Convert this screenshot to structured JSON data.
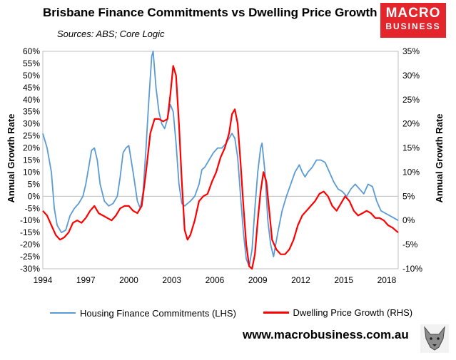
{
  "title": "Brisbane Finance Commitments vs Dwelling Price Growth",
  "subtitle": "Sources: ABS; Core Logic",
  "logo": {
    "line1": "MACRO",
    "line2": "BUSINESS",
    "color": "#e4262c"
  },
  "website": "www.macrobusiness.com.au",
  "chart_data": {
    "type": "line",
    "x_ticks": [
      "1994",
      "1997",
      "2000",
      "2003",
      "2006",
      "2009",
      "2012",
      "2015",
      "2018"
    ],
    "x_range": [
      1994.0,
      2018.8
    ],
    "y_left": {
      "label": "Annual Growth Rate",
      "range": [
        -30,
        60
      ],
      "ticks": [
        "60%",
        "55%",
        "50%",
        "45%",
        "40%",
        "35%",
        "30%",
        "25%",
        "20%",
        "15%",
        "10%",
        "5%",
        "0%",
        "-5%",
        "-10%",
        "-15%",
        "-20%",
        "-25%",
        "-30%"
      ]
    },
    "y_right": {
      "label": "Annual Growth Rate",
      "range": [
        -10,
        35
      ],
      "ticks": [
        "35%",
        "30%",
        "25%",
        "20%",
        "15%",
        "10%",
        "5%",
        "0%",
        "-5%",
        "-10%"
      ]
    },
    "zero_line": true,
    "legend_position": "bottom",
    "series": [
      {
        "name": "Housing Finance Commitments (LHS)",
        "axis": "left",
        "color": "#5b9bd5",
        "x": [
          1994.0,
          1994.3,
          1994.6,
          1994.8,
          1995.0,
          1995.3,
          1995.6,
          1995.9,
          1996.2,
          1996.5,
          1996.8,
          1997.0,
          1997.2,
          1997.4,
          1997.6,
          1997.8,
          1998.0,
          1998.3,
          1998.6,
          1998.9,
          1999.2,
          1999.4,
          1999.6,
          1999.8,
          2000.0,
          2000.3,
          2000.6,
          2000.8,
          2001.0,
          2001.2,
          2001.4,
          2001.6,
          2001.7,
          2001.9,
          2002.1,
          2002.3,
          2002.5,
          2002.7,
          2002.9,
          2003.1,
          2003.3,
          2003.5,
          2003.7,
          2003.9,
          2004.1,
          2004.3,
          2004.6,
          2004.9,
          2005.1,
          2005.3,
          2005.6,
          2005.9,
          2006.2,
          2006.5,
          2006.8,
          2007.0,
          2007.2,
          2007.4,
          2007.6,
          2007.8,
          2008.0,
          2008.2,
          2008.4,
          2008.6,
          2008.8,
          2009.0,
          2009.2,
          2009.3,
          2009.5,
          2009.7,
          2009.9,
          2010.1,
          2010.4,
          2010.7,
          2011.0,
          2011.3,
          2011.6,
          2011.9,
          2012.1,
          2012.3,
          2012.5,
          2012.8,
          2013.1,
          2013.4,
          2013.7,
          2014.0,
          2014.3,
          2014.6,
          2014.9,
          2015.2,
          2015.5,
          2015.8,
          2016.1,
          2016.4,
          2016.7,
          2017.0,
          2017.3,
          2017.6,
          2017.9,
          2018.2,
          2018.5,
          2018.8
        ],
        "y": [
          26,
          20,
          10,
          -5,
          -12,
          -15,
          -14,
          -8,
          -5,
          -3,
          0,
          5,
          12,
          19,
          20,
          15,
          5,
          -2,
          -4,
          -3,
          0,
          8,
          18,
          20,
          21,
          10,
          -2,
          -5,
          2,
          20,
          40,
          58,
          60,
          45,
          35,
          30,
          28,
          32,
          38,
          35,
          22,
          5,
          -3,
          -4,
          -3,
          -2,
          0,
          5,
          11,
          12,
          15,
          18,
          20,
          20,
          22,
          24,
          26,
          24,
          16,
          0,
          -15,
          -26,
          -29,
          -22,
          -5,
          10,
          20,
          22,
          10,
          -10,
          -20,
          -25,
          -15,
          -6,
          0,
          5,
          10,
          13,
          10,
          8,
          10,
          12,
          15,
          15,
          14,
          10,
          6,
          3,
          2,
          0,
          3,
          5,
          3,
          1,
          5,
          4,
          -2,
          -6,
          -7,
          -8,
          -9,
          -10
        ]
      },
      {
        "name": "Dwelling Price Growth (RHS)",
        "axis": "right",
        "color": "#ff0000",
        "x": [
          1994.0,
          1994.3,
          1994.6,
          1994.9,
          1995.2,
          1995.5,
          1995.8,
          1996.1,
          1996.4,
          1996.7,
          1997.0,
          1997.3,
          1997.6,
          1997.9,
          1998.2,
          1998.5,
          1998.8,
          1999.1,
          1999.4,
          1999.7,
          2000.0,
          2000.3,
          2000.6,
          2000.9,
          2001.2,
          2001.5,
          2001.8,
          2002.1,
          2002.4,
          2002.7,
          2002.9,
          2003.1,
          2003.3,
          2003.5,
          2003.7,
          2003.9,
          2004.1,
          2004.3,
          2004.6,
          2004.9,
          2005.2,
          2005.5,
          2005.8,
          2006.1,
          2006.4,
          2006.7,
          2007.0,
          2007.2,
          2007.4,
          2007.6,
          2007.8,
          2008.0,
          2008.2,
          2008.4,
          2008.6,
          2008.8,
          2009.0,
          2009.2,
          2009.4,
          2009.6,
          2009.8,
          2010.0,
          2010.3,
          2010.6,
          2010.9,
          2011.2,
          2011.5,
          2011.8,
          2012.1,
          2012.4,
          2012.7,
          2013.0,
          2013.3,
          2013.6,
          2013.9,
          2014.2,
          2014.5,
          2014.8,
          2015.1,
          2015.4,
          2015.7,
          2016.0,
          2016.3,
          2016.6,
          2016.9,
          2017.2,
          2017.5,
          2017.8,
          2018.1,
          2018.4,
          2018.6,
          2018.8
        ],
        "y": [
          2,
          1,
          -1,
          -3,
          -4,
          -3.5,
          -2.5,
          -0.5,
          0,
          -0.5,
          0.5,
          2,
          3,
          1.5,
          1,
          0.5,
          0,
          1,
          2.5,
          3,
          3,
          2,
          1.5,
          3,
          10,
          18,
          21,
          21,
          20.5,
          21,
          26,
          32,
          30,
          20,
          8,
          -2,
          -4,
          -3,
          0,
          4,
          5,
          5.5,
          8,
          10,
          13,
          15,
          18,
          22,
          23,
          20,
          12,
          3,
          -5,
          -9.5,
          -10,
          -7,
          0,
          6,
          10,
          8,
          2,
          -4,
          -6,
          -7,
          -7,
          -6,
          -4,
          -1,
          1,
          2,
          3,
          4,
          5.5,
          6,
          5,
          3,
          2,
          3.5,
          5,
          4,
          2,
          1,
          1.5,
          2,
          1.5,
          0.5,
          0.5,
          0,
          -1,
          -1.5,
          -2,
          -2.5
        ]
      }
    ]
  }
}
